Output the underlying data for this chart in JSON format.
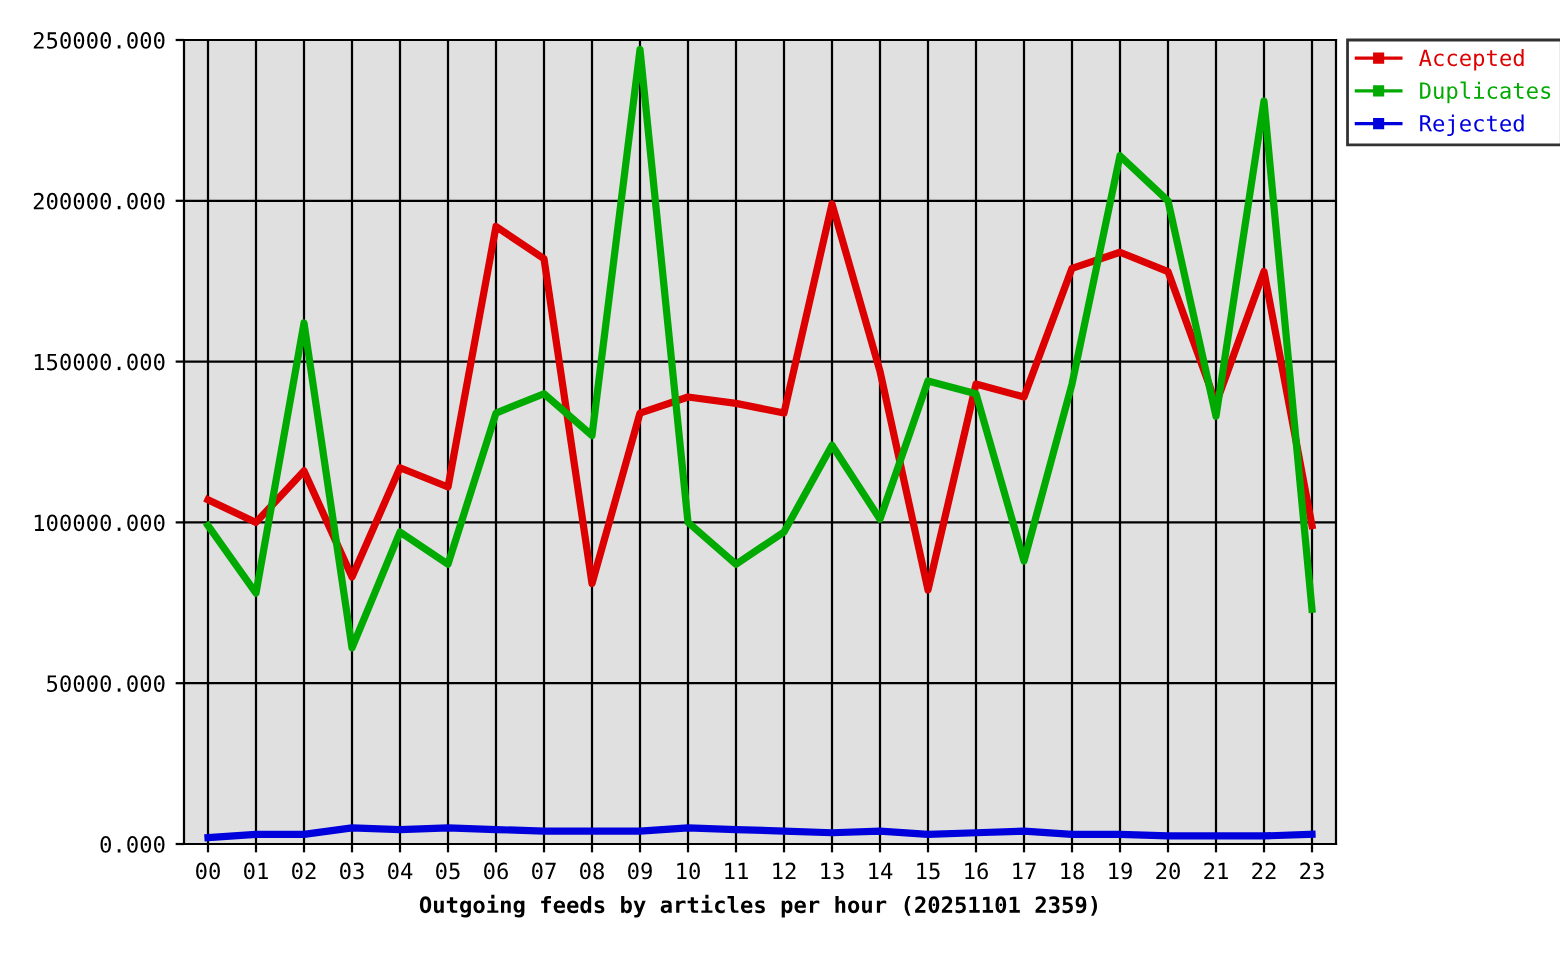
{
  "chart_data": {
    "type": "line",
    "xlabel": "Outgoing feeds by articles per hour (20251101 2359)",
    "categories": [
      "00",
      "01",
      "02",
      "03",
      "04",
      "05",
      "06",
      "07",
      "08",
      "09",
      "10",
      "11",
      "12",
      "13",
      "14",
      "15",
      "16",
      "17",
      "18",
      "19",
      "20",
      "21",
      "22",
      "23"
    ],
    "series": [
      {
        "name": "Accepted",
        "color": "#dd0000",
        "values": [
          107000,
          100000,
          116000,
          83000,
          117000,
          111000,
          192000,
          182000,
          81000,
          134000,
          139000,
          137000,
          134000,
          199000,
          147000,
          79000,
          143000,
          139000,
          179000,
          184000,
          178000,
          137000,
          178000,
          99000
        ]
      },
      {
        "name": "Duplicates",
        "color": "#00aa00",
        "values": [
          99000,
          78000,
          162000,
          61000,
          97000,
          87000,
          134000,
          140000,
          127000,
          247000,
          100000,
          87000,
          97000,
          124000,
          101000,
          144000,
          140000,
          88000,
          143000,
          214000,
          200000,
          133000,
          231000,
          73000
        ]
      },
      {
        "name": "Rejected",
        "color": "#0000dd",
        "values": [
          2000,
          3000,
          3000,
          5000,
          4500,
          5000,
          4500,
          4000,
          4000,
          4000,
          5000,
          4500,
          4000,
          3500,
          4000,
          3000,
          3500,
          4000,
          3000,
          3000,
          2500,
          2500,
          2500,
          3000
        ]
      }
    ],
    "ylim": [
      0,
      250000
    ],
    "yticks": [
      {
        "value": 0,
        "label": "0.000"
      },
      {
        "value": 50000,
        "label": "50000.000"
      },
      {
        "value": 100000,
        "label": "100000.000"
      },
      {
        "value": 150000,
        "label": "150000.000"
      },
      {
        "value": 200000,
        "label": "200000.000"
      },
      {
        "value": 250000,
        "label": "250000.000"
      }
    ],
    "grid": true,
    "legend": "top right",
    "line_style": "solid"
  }
}
